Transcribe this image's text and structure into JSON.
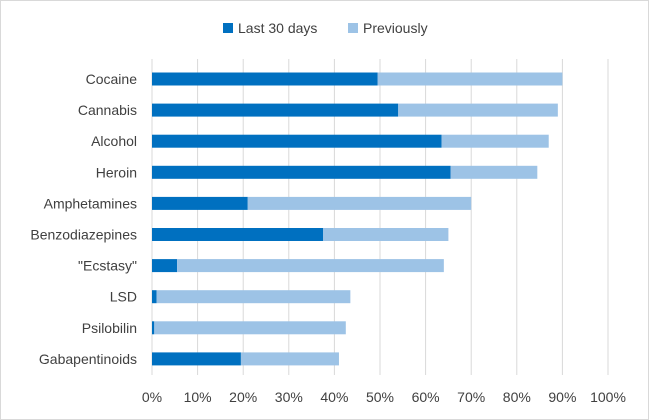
{
  "chart_data": {
    "type": "bar",
    "orientation": "horizontal",
    "stacked": true,
    "categories": [
      "Cocaine",
      "Cannabis",
      "Alcohol",
      "Heroin",
      "Amphetamines",
      "Benzodiazepines",
      "\"Ecstasy\"",
      "LSD",
      "Psilobilin",
      "Gabapentinoids"
    ],
    "series": [
      {
        "name": "Last 30 days",
        "color": "#0070c0",
        "values": [
          49.5,
          54,
          63.5,
          65.5,
          21,
          37.5,
          5.5,
          1,
          0.5,
          19.5
        ]
      },
      {
        "name": "Previously",
        "color": "#9dc3e6",
        "values": [
          40.5,
          35,
          23.5,
          19,
          49,
          27.5,
          58.5,
          42.5,
          42,
          21.5
        ]
      }
    ],
    "xlim": [
      0,
      100
    ],
    "x_ticks": [
      "0%",
      "10%",
      "20%",
      "30%",
      "40%",
      "50%",
      "60%",
      "70%",
      "80%",
      "90%",
      "100%"
    ],
    "grid": "vertical",
    "legend_position": "top"
  }
}
